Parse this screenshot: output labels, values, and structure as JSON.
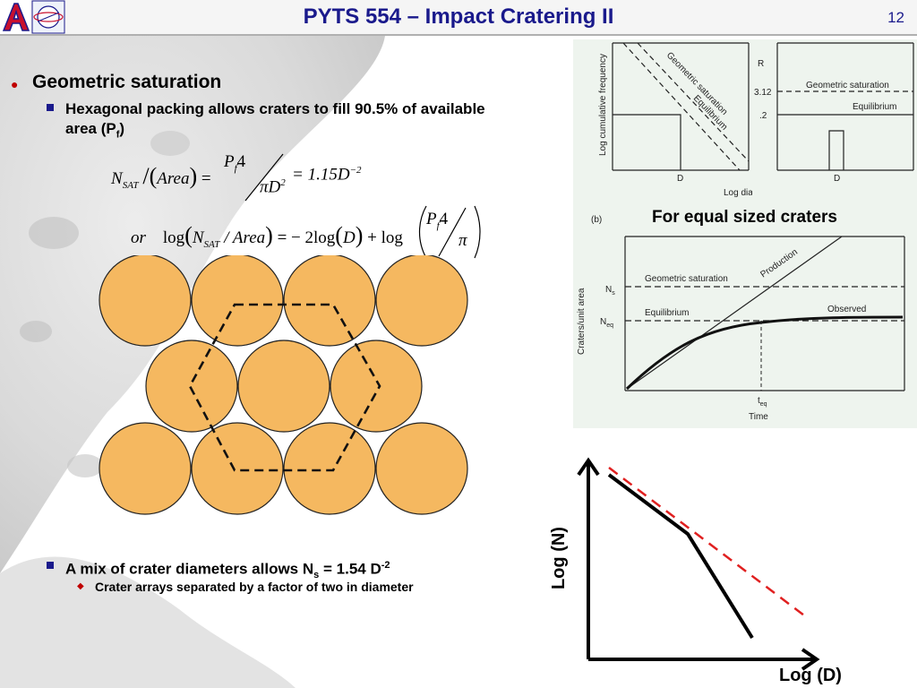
{
  "header": {
    "title": "PYTS 554 – Impact Cratering II",
    "page_number": "12"
  },
  "bullets": {
    "b1": "Geometric saturation",
    "b1_sub": "Hexagonal packing allows craters to fill 90.5% of available area (P",
    "b1_sub_subscript": "f",
    "b1_sub_tail": ")",
    "b2": "A mix of crater diameters allows N",
    "b2_subscript": "s",
    "b2_tail": " = 1.54 D",
    "b2_superscript": "-2",
    "b2_sub": "Crater arrays separated by a factor of two in diameter"
  },
  "equations": {
    "eq1_lhs": "N",
    "eq1_lhs_sub": "SAT",
    "eq1_area": "Area",
    "eq1_num": "P",
    "eq1_num_sub": "f",
    "eq1_num_tail": "4",
    "eq1_den": "πD",
    "eq1_den_sup": "2",
    "eq1_rhs": "= 1.15D",
    "eq1_rhs_sup": "−2",
    "eq2_or": "or",
    "eq2_log": "log",
    "eq2_mid": "N",
    "eq2_mid_sub": "SAT",
    "eq2_area": " / Area",
    "eq2_rhs": "= − 2log",
    "eq2_D": "D",
    "eq2_plus": "+ log",
    "eq2_num": "P",
    "eq2_num_sub": "f",
    "eq2_num_tail": "4",
    "eq2_den": "π"
  },
  "figure_top": {
    "ylabel": "Log cumulative frequency",
    "xlabel": "Log diameter",
    "line1": "Geometric saturation",
    "line2": "Equilibrium",
    "xtick": "D",
    "right_ylabel": "R",
    "right_tick1": "3.12",
    "right_tick2": ".2",
    "right_line1": "Geometric saturation",
    "right_line2": "Equilibrium",
    "right_xtick": "D"
  },
  "figure_caption": "For equal sized craters",
  "figure_bottom": {
    "panel_label": "(b)",
    "ylabel": "Craters/unit area",
    "xlabel": "Time",
    "tick_ns": "N",
    "tick_ns_sub": "s",
    "tick_neq": "N",
    "tick_neq_sub": "eq",
    "line_geo": "Geometric saturation",
    "line_eq": "Equilibrium",
    "line_prod": "Production",
    "line_obs": "Observed",
    "xtick": "t",
    "xtick_sub": "eq"
  },
  "sketch": {
    "ylabel": "Log (N)",
    "xlabel": "Log (D)"
  },
  "colors": {
    "title": "#1a1a8c",
    "crater_fill": "#f5b860",
    "bullet_red": "#c00000",
    "bullet_blue": "#1a1a8c",
    "sketch_dashed": "#e02020"
  }
}
